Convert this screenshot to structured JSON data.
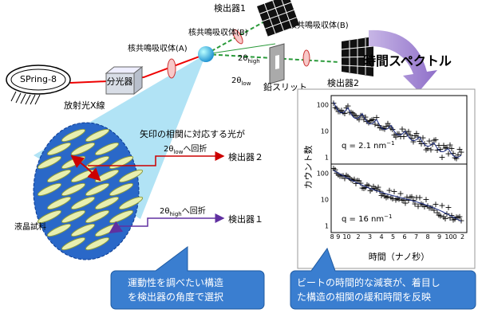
{
  "source": {
    "label": "SPring-8",
    "beam": "放射光X線"
  },
  "monochromator": "分光器",
  "absorber_a": "核共鳴吸収体(A)",
  "absorber_b1": "核共鳴吸収体(B)",
  "absorber_b2": "核共鳴吸収体(B)",
  "detector1": "検出器1",
  "detector2": "検出器2",
  "slit": "鉛スリット",
  "angle_high": {
    "symbol": "2θ",
    "sub": "high"
  },
  "angle_low": {
    "symbol": "2θ",
    "sub": "low"
  },
  "spectrum_title": "時間スペクトル",
  "sample": "液晶試料",
  "arrow_caption": "矢印の相関に対応する光が",
  "diffraction_low": {
    "symbol": "2θ",
    "sub": "low",
    "suffix": "へ回折",
    "target": "検出器２"
  },
  "diffraction_high": {
    "symbol": "2θ",
    "sub": "high",
    "suffix": "へ回折",
    "target": "検出器１"
  },
  "plot": {
    "ylabel": "カウント数",
    "xlabel": "時間（ナノ秒）",
    "top": {
      "q": "q = 2.1 nm",
      "exp": "−1",
      "yticks": [
        "100",
        "10",
        "1"
      ]
    },
    "bottom": {
      "q": "q = 16 nm",
      "exp": "−1",
      "yticks": [
        "100",
        "10",
        "1"
      ]
    },
    "xticks": [
      "8 9",
      "10",
      "2",
      "3",
      "4",
      "5",
      "6",
      "7",
      "8",
      "9",
      "100",
      "2"
    ]
  },
  "callout_left": [
    "運動性を調べたい構造",
    "を検出器の角度で選択"
  ],
  "callout_right": [
    "ビートの時間的な減衰が、着目し",
    "た構造の相関の緩和時間を反映"
  ]
}
